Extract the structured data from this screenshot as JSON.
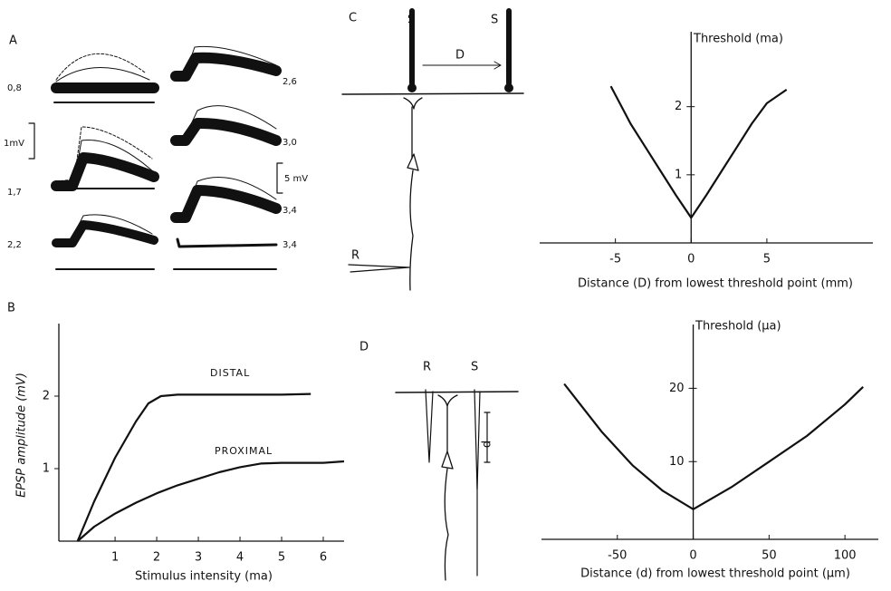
{
  "panel_labels": [
    "A",
    "B",
    "C",
    "D"
  ],
  "panel_a": {
    "trace_labels": [
      "0,8",
      "1,7",
      "2,2",
      "2,6",
      "3,0",
      "3,4",
      "3,4"
    ],
    "scale_labels": [
      "1mV",
      "5 mV"
    ]
  },
  "panel_c_diagram": {
    "labels": [
      "S",
      "S",
      "D",
      "R"
    ]
  },
  "panel_d_diagram": {
    "labels": [
      "R",
      "S",
      "d"
    ]
  },
  "chart_data": [
    {
      "type": "line",
      "x_label": "Stimulus intensity (ma)",
      "y_label": "EPSP amplitude (mV)",
      "xlim": [
        -0.35,
        6.5
      ],
      "ylim": [
        0,
        3
      ],
      "xticks": [
        1,
        2,
        3,
        4,
        5,
        6
      ],
      "yticks": [
        1,
        2
      ],
      "series": [
        {
          "name": "DISTAL",
          "color": "#111111",
          "x": [
            0.1,
            0.5,
            1,
            1.5,
            1.8,
            2.1,
            2.5,
            3,
            4,
            5,
            5.7
          ],
          "values": [
            0,
            0.55,
            1.15,
            1.65,
            1.9,
            2.0,
            2.02,
            2.02,
            2.02,
            2.02,
            2.03
          ]
        },
        {
          "name": "PROXIMAL",
          "color": "#111111",
          "x": [
            0.1,
            0.5,
            1,
            1.5,
            2,
            2.5,
            3,
            3.5,
            4,
            4.5,
            5,
            6,
            6.5
          ],
          "values": [
            0,
            0.2,
            0.38,
            0.53,
            0.66,
            0.77,
            0.86,
            0.95,
            1.02,
            1.07,
            1.08,
            1.08,
            1.1
          ]
        }
      ]
    },
    {
      "type": "line",
      "x_label": "Distance (D) from lowest threshold point (mm)",
      "y_label": "Threshold (ma)",
      "xlim": [
        -10,
        12
      ],
      "ylim": [
        0,
        3.1
      ],
      "xticks": [
        -5,
        0,
        5
      ],
      "yticks": [
        1,
        2
      ],
      "series": [
        {
          "color": "#111111",
          "x": [
            -5.3,
            -4,
            -3,
            -2,
            -1,
            0,
            1,
            2,
            3,
            4,
            5,
            6.3
          ],
          "values": [
            2.3,
            1.75,
            1.4,
            1.05,
            0.7,
            0.37,
            0.7,
            1.05,
            1.4,
            1.75,
            2.05,
            2.25
          ]
        }
      ]
    },
    {
      "type": "line",
      "x_label": "Distance (d) from lowest threshold point (µm)",
      "y_label": "Threshold (µa)",
      "xlim": [
        -100,
        122
      ],
      "ylim": [
        -0.6,
        28.7
      ],
      "xticks": [
        -50,
        0,
        50,
        100
      ],
      "yticks": [
        10,
        20
      ],
      "series": [
        {
          "color": "#111111",
          "x": [
            -85,
            -60,
            -40,
            -20,
            0,
            25,
            50,
            75,
            100,
            112
          ],
          "values": [
            20.6,
            14,
            9.5,
            6,
            3.5,
            6.5,
            10,
            13.5,
            17.8,
            20.2
          ]
        }
      ]
    }
  ]
}
